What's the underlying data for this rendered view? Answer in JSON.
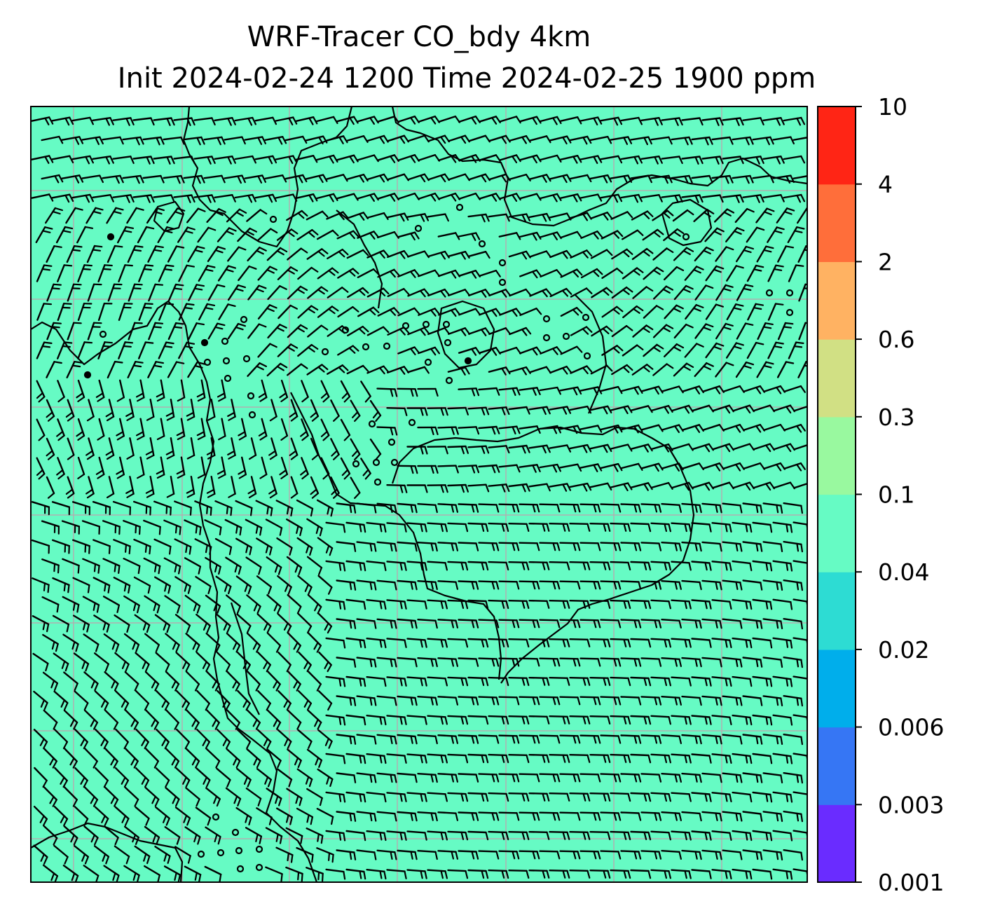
{
  "figure": {
    "title_line1": "WRF-Tracer CO_bdy 4km",
    "title_line2": "Init 2024-02-24 1200 Time 2024-02-25 1900 ppm"
  },
  "map": {
    "field_name": "CO_bdy",
    "units": "ppm",
    "field_fill_color": "#66fbc4",
    "grid_color": "#b0b0b0",
    "barb_color": "#000000",
    "coastline_color": "#000000",
    "wind_barbs": "present (dense barb field; calm circles in some areas)"
  },
  "colorbar": {
    "levels": [
      "0.001",
      "0.003",
      "0.006",
      "0.02",
      "0.04",
      "0.1",
      "0.3",
      "0.6",
      "2",
      "4",
      "10"
    ],
    "colors": [
      "#6a2cff",
      "#3676f4",
      "#00aeeb",
      "#2ddcd3",
      "#66fbc4",
      "#99f99f",
      "#d1e084",
      "#ffb262",
      "#ff6e3a",
      "#ff2515"
    ]
  }
}
